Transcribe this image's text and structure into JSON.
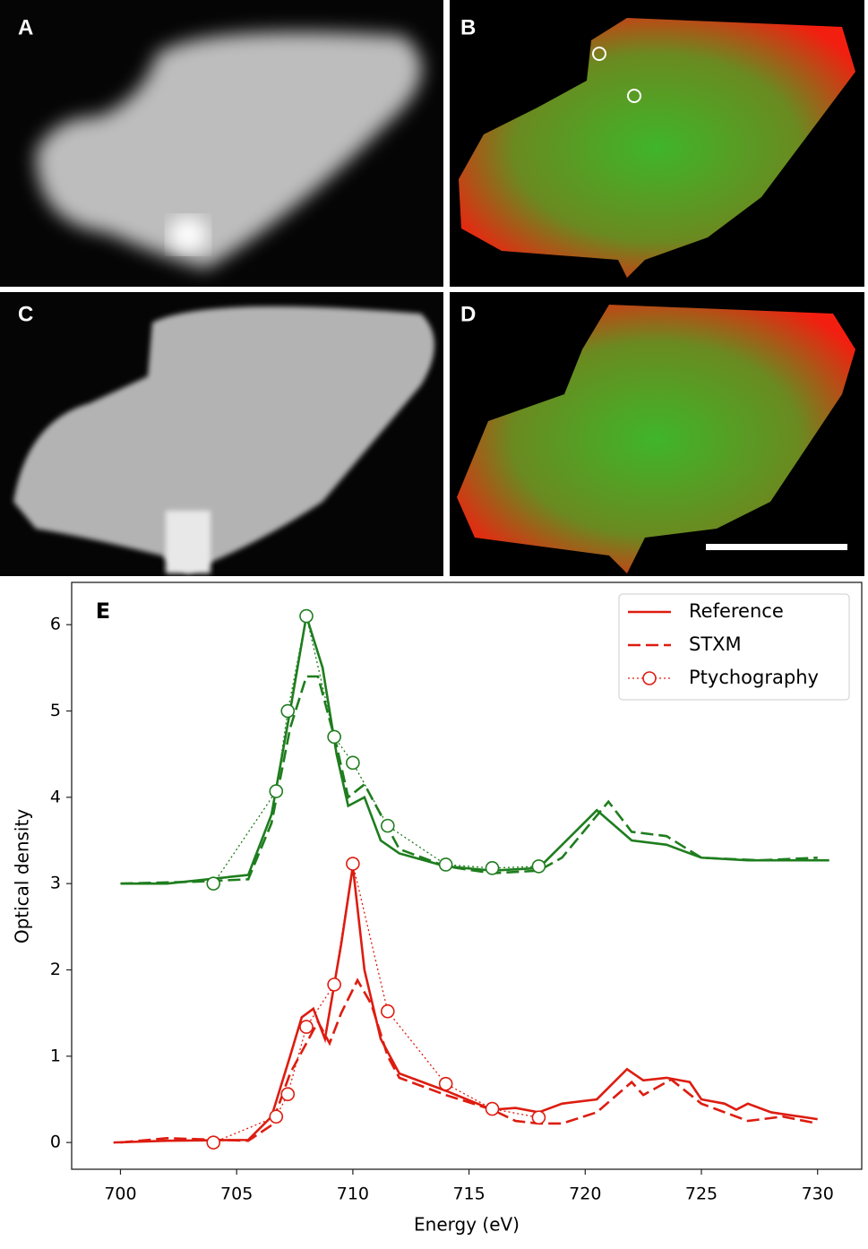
{
  "panels": [
    "A",
    "B",
    "C",
    "D"
  ],
  "chart_data": {
    "type": "line",
    "label": "E",
    "xlabel": "Energy (eV)",
    "ylabel": "Optical density",
    "xlim": [
      697.9,
      731.9
    ],
    "ylim": [
      -0.31,
      6.49
    ],
    "xticks": [
      700,
      705,
      710,
      715,
      720,
      725,
      730
    ],
    "yticks": [
      0,
      1,
      2,
      3,
      4,
      5,
      6
    ],
    "legend": "upper right",
    "series": [
      {
        "name": "Reference",
        "color": "#dd1c10",
        "style": "solid",
        "x": [
          699.7,
          702,
          705.5,
          706.5,
          707.3,
          707.8,
          708.3,
          708.8,
          709.5,
          710,
          710.5,
          711.2,
          712,
          714,
          716,
          717,
          718,
          719,
          720.5,
          721.8,
          722.5,
          723.5,
          724.5,
          725,
          726,
          726.5,
          727,
          728,
          730
        ],
        "values": [
          0,
          0.02,
          0.03,
          0.3,
          1.0,
          1.45,
          1.55,
          1.2,
          2.3,
          3.2,
          2.0,
          1.2,
          0.8,
          0.6,
          0.38,
          0.4,
          0.35,
          0.45,
          0.5,
          0.85,
          0.72,
          0.75,
          0.7,
          0.5,
          0.45,
          0.38,
          0.45,
          0.35,
          0.27
        ]
      },
      {
        "name": "STXM",
        "color": "#dd1c10",
        "style": "dashed",
        "x": [
          700,
          702,
          705.5,
          706.5,
          707.3,
          708.5,
          709,
          709.5,
          710.2,
          710.8,
          711.5,
          712,
          714,
          716,
          717,
          718,
          719,
          720.5,
          722,
          722.5,
          723.7,
          725,
          727,
          728.5,
          730
        ],
        "values": [
          0,
          0.05,
          0.02,
          0.2,
          0.8,
          1.4,
          1.15,
          1.5,
          1.88,
          1.6,
          1.0,
          0.75,
          0.55,
          0.38,
          0.25,
          0.22,
          0.22,
          0.35,
          0.7,
          0.55,
          0.73,
          0.45,
          0.25,
          0.3,
          0.22
        ]
      },
      {
        "name": "Ptychography",
        "color": "#dd1c10",
        "style": "dotted-circle",
        "x": [
          704,
          706.7,
          707.2,
          708,
          709.2,
          710,
          711.5,
          714,
          716,
          718
        ],
        "values": [
          0,
          0.3,
          0.56,
          1.34,
          1.83,
          3.23,
          1.52,
          0.68,
          0.39,
          0.29
        ]
      },
      {
        "color": "#1e7d1e",
        "style": "solid",
        "x": [
          700,
          702,
          705.5,
          706.5,
          707.3,
          708,
          708.7,
          709.3,
          709.8,
          710.5,
          711.2,
          712,
          714,
          716,
          718,
          720.5,
          722,
          723.5,
          725,
          727,
          730.5
        ],
        "values": [
          3.0,
          3.0,
          3.1,
          3.8,
          5.0,
          6.1,
          5.5,
          4.5,
          3.9,
          4.0,
          3.5,
          3.35,
          3.2,
          3.15,
          3.18,
          3.85,
          3.5,
          3.45,
          3.3,
          3.27,
          3.27
        ]
      },
      {
        "color": "#1e7d1e",
        "style": "dashed",
        "x": [
          700,
          703,
          705.5,
          706.5,
          707.3,
          708,
          708.5,
          709.3,
          709.8,
          710.5,
          711.2,
          712,
          714,
          716,
          718,
          719,
          721,
          722,
          723.5,
          725,
          727.5,
          730
        ],
        "values": [
          3.0,
          3.02,
          3.05,
          3.7,
          4.8,
          5.4,
          5.4,
          4.6,
          4.0,
          4.15,
          3.8,
          3.4,
          3.2,
          3.12,
          3.15,
          3.3,
          3.95,
          3.6,
          3.55,
          3.3,
          3.27,
          3.3
        ]
      },
      {
        "color": "#1e7d1e",
        "style": "dotted-circle",
        "x": [
          704,
          706.7,
          707.2,
          708,
          709.2,
          710,
          711.5,
          714,
          716,
          718
        ],
        "values": [
          3.0,
          4.07,
          5.0,
          6.1,
          4.7,
          4.4,
          3.67,
          3.22,
          3.18,
          3.2
        ]
      }
    ]
  }
}
